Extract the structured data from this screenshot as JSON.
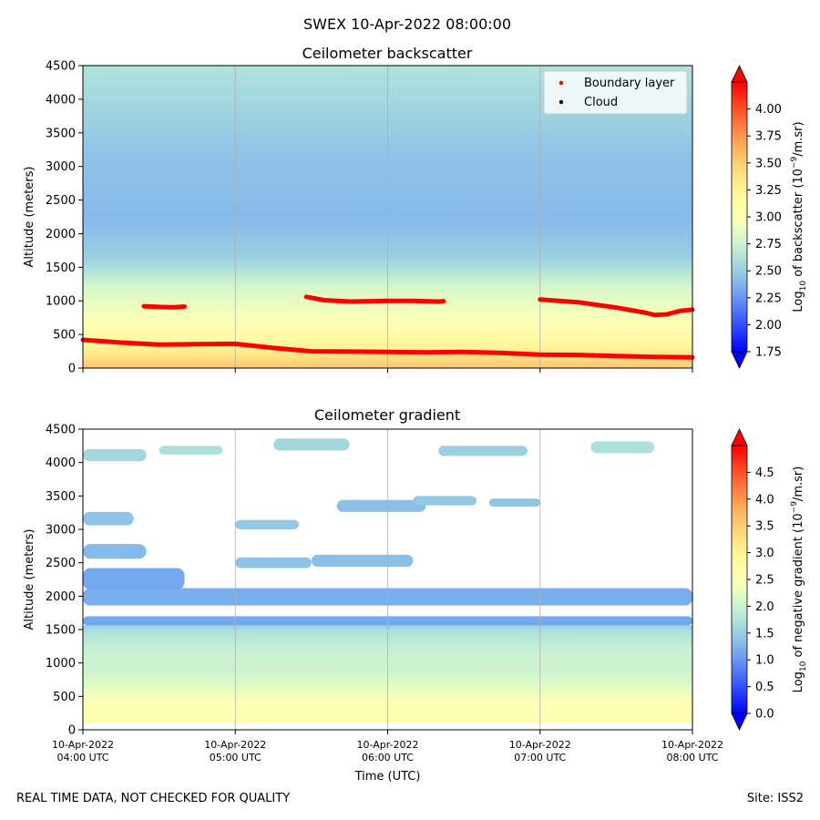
{
  "figure": {
    "suptitle": "SWEX 10-Apr-2022 08:00:00",
    "footer_left": "REAL TIME DATA, NOT CHECKED FOR QUALITY",
    "footer_right": "Site: ISS2"
  },
  "chart_data": [
    {
      "type": "heatmap",
      "title": "Ceilometer backscatter",
      "xlabel": "",
      "ylabel": "Altitude (meters)",
      "xlim": [
        "04:00",
        "08:00"
      ],
      "x_ticks": [
        "10-Apr-2022 04:00 UTC",
        "10-Apr-2022 05:00 UTC",
        "10-Apr-2022 06:00 UTC",
        "10-Apr-2022 07:00 UTC",
        "10-Apr-2022 08:00 UTC"
      ],
      "x_tick_labels_shown": false,
      "ylim": [
        0,
        4500
      ],
      "y_ticks": [
        0,
        500,
        1000,
        1500,
        2000,
        2500,
        3000,
        3500,
        4000,
        4500
      ],
      "grid": "vertical",
      "colormap": "rainbow",
      "colorbar": {
        "label_prefix": "Log",
        "label_sub": "10",
        "label_mid": " of backscatter (10",
        "label_sup": "−9",
        "label_suffix": "/m.sr)",
        "range": [
          1.75,
          4.25
        ],
        "ticks": [
          "1.75",
          "2.00",
          "2.25",
          "2.50",
          "2.75",
          "3.00",
          "3.25",
          "3.50",
          "3.75",
          "4.00"
        ],
        "extend": "both"
      },
      "legend": {
        "placement": "top-right",
        "entries": [
          {
            "label": "Boundary layer",
            "color": "#ff0000"
          },
          {
            "label": "Cloud",
            "color": "#000000"
          }
        ]
      },
      "field_profile": [
        {
          "altitude": 0,
          "value": 3.55
        },
        {
          "altitude": 150,
          "value": 3.4
        },
        {
          "altitude": 400,
          "value": 3.15
        },
        {
          "altitude": 800,
          "value": 2.95
        },
        {
          "altitude": 1200,
          "value": 2.8
        },
        {
          "altitude": 1600,
          "value": 2.52
        },
        {
          "altitude": 2200,
          "value": 2.4
        },
        {
          "altitude": 3200,
          "value": 2.45
        },
        {
          "altitude": 4000,
          "value": 2.55
        },
        {
          "altitude": 4500,
          "value": 2.62
        }
      ],
      "series": [
        {
          "name": "Boundary layer",
          "color": "#ff0000",
          "segments": [
            [
              [
                "04:00",
                420
              ],
              [
                "04:15",
                380
              ],
              [
                "04:30",
                350
              ],
              [
                "04:45",
                355
              ],
              [
                "05:00",
                360
              ],
              [
                "05:15",
                300
              ],
              [
                "05:30",
                250
              ],
              [
                "05:45",
                245
              ],
              [
                "06:00",
                240
              ],
              [
                "06:15",
                235
              ],
              [
                "06:30",
                240
              ],
              [
                "06:45",
                225
              ],
              [
                "07:00",
                200
              ],
              [
                "07:15",
                195
              ],
              [
                "07:30",
                180
              ],
              [
                "07:45",
                165
              ],
              [
                "08:00",
                160
              ]
            ],
            [
              [
                "04:24",
                920
              ],
              [
                "04:30",
                910
              ],
              [
                "04:36",
                905
              ],
              [
                "04:40",
                915
              ]
            ],
            [
              [
                "05:28",
                1060
              ],
              [
                "05:35",
                1010
              ],
              [
                "05:45",
                990
              ],
              [
                "06:00",
                1000
              ],
              [
                "06:10",
                1000
              ],
              [
                "06:20",
                990
              ],
              [
                "06:22",
                995
              ]
            ],
            [
              [
                "07:00",
                1020
              ],
              [
                "07:15",
                980
              ],
              [
                "07:30",
                900
              ],
              [
                "07:42",
                820
              ],
              [
                "07:45",
                790
              ],
              [
                "07:50",
                800
              ],
              [
                "07:55",
                850
              ],
              [
                "08:00",
                870
              ]
            ]
          ]
        },
        {
          "name": "Cloud",
          "color": "#000000",
          "segments": []
        }
      ]
    },
    {
      "type": "heatmap",
      "title": "Ceilometer gradient",
      "xlabel": "Time (UTC)",
      "ylabel": "Altitude (meters)",
      "xlim": [
        "04:00",
        "08:00"
      ],
      "x_ticks": [
        "10-Apr-2022 04:00 UTC",
        "10-Apr-2022 05:00 UTC",
        "10-Apr-2022 06:00 UTC",
        "10-Apr-2022 07:00 UTC",
        "10-Apr-2022 08:00 UTC"
      ],
      "x_tick_labels_shown": true,
      "ylim": [
        0,
        4500
      ],
      "y_ticks": [
        0,
        500,
        1000,
        1500,
        2000,
        2500,
        3000,
        3500,
        4000,
        4500
      ],
      "grid": "vertical",
      "colormap": "rainbow",
      "colorbar": {
        "label_prefix": "Log",
        "label_sub": "10",
        "label_mid": " of negative gradient (10",
        "label_sup": "−9",
        "label_suffix": "/m.sr)",
        "range": [
          0,
          5
        ],
        "ticks": [
          "0.0",
          "0.5",
          "1.0",
          "1.5",
          "2.0",
          "2.5",
          "3.0",
          "3.5",
          "4.0",
          "4.5"
        ],
        "extend": "both"
      },
      "field_profile": [
        {
          "altitude": 100,
          "value": 2.6
        },
        {
          "altitude": 400,
          "value": 2.5
        },
        {
          "altitude": 800,
          "value": 2.05
        },
        {
          "altitude": 1200,
          "value": 1.95
        },
        {
          "altitude": 1500,
          "value": 1.7
        },
        {
          "altitude": 1600,
          "value": 1.3
        }
      ],
      "value_patches": [
        {
          "time": [
            "04:00",
            "08:00"
          ],
          "altitude": [
            1560,
            1700
          ],
          "value": 1.15
        },
        {
          "time": [
            "04:00",
            "08:00"
          ],
          "altitude": [
            1860,
            2120
          ],
          "value": 1.2
        },
        {
          "time": [
            "04:00",
            "04:40"
          ],
          "altitude": [
            2100,
            2420
          ],
          "value": 1.15
        },
        {
          "time": [
            "04:00",
            "04:25"
          ],
          "altitude": [
            2560,
            2780
          ],
          "value": 1.3
        },
        {
          "time": [
            "05:00",
            "05:30"
          ],
          "altitude": [
            2420,
            2580
          ],
          "value": 1.4
        },
        {
          "time": [
            "05:30",
            "06:10"
          ],
          "altitude": [
            2440,
            2620
          ],
          "value": 1.35
        },
        {
          "time": [
            "04:00",
            "04:20"
          ],
          "altitude": [
            3060,
            3260
          ],
          "value": 1.4
        },
        {
          "time": [
            "05:00",
            "05:25"
          ],
          "altitude": [
            3000,
            3140
          ],
          "value": 1.45
        },
        {
          "time": [
            "05:40",
            "06:15"
          ],
          "altitude": [
            3260,
            3440
          ],
          "value": 1.35
        },
        {
          "time": [
            "06:10",
            "06:35"
          ],
          "altitude": [
            3360,
            3500
          ],
          "value": 1.45
        },
        {
          "time": [
            "06:40",
            "07:00"
          ],
          "altitude": [
            3340,
            3460
          ],
          "value": 1.4
        },
        {
          "time": [
            "04:00",
            "04:25"
          ],
          "altitude": [
            4020,
            4200
          ],
          "value": 1.6
        },
        {
          "time": [
            "04:30",
            "04:55"
          ],
          "altitude": [
            4120,
            4250
          ],
          "value": 1.7
        },
        {
          "time": [
            "05:15",
            "05:45"
          ],
          "altitude": [
            4180,
            4360
          ],
          "value": 1.6
        },
        {
          "time": [
            "06:20",
            "06:55"
          ],
          "altitude": [
            4100,
            4250
          ],
          "value": 1.5
        },
        {
          "time": [
            "07:20",
            "07:45"
          ],
          "altitude": [
            4140,
            4320
          ],
          "value": 1.7
        }
      ]
    }
  ]
}
